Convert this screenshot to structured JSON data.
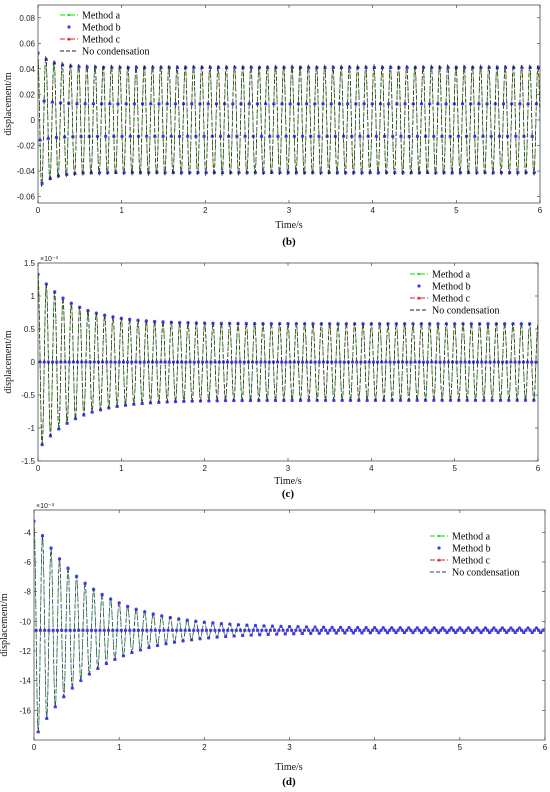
{
  "chart_data": [
    {
      "type": "line",
      "panel": "(b)",
      "caption": "(b)",
      "xlabel": "Time/s",
      "ylabel": "displacement/m",
      "xlim": [
        0,
        6
      ],
      "ylim": [
        -0.065,
        0.09
      ],
      "xticks": [
        0,
        1,
        2,
        3,
        4,
        5,
        6
      ],
      "xtick_labels": [
        "0",
        "1",
        "2",
        "3",
        "4",
        "5",
        "6"
      ],
      "yticks": [
        -0.06,
        -0.04,
        -0.02,
        0,
        0.02,
        0.04,
        0.06,
        0.08
      ],
      "ytick_labels": [
        "-0.06",
        "-0.04",
        "-0.02",
        "0",
        "0.02",
        "0.04",
        "0.06",
        "0.08"
      ],
      "exponent_label": "",
      "legend_position": "top-left",
      "signal": {
        "offset": 0,
        "steady_amplitude": 0.043,
        "initial_amplitude": 0.012,
        "decay": 6.0,
        "frequency": 10.2,
        "phase": 0.3
      },
      "series": [
        {
          "name": "Method a",
          "color": "#00e000",
          "style": "dash-dot",
          "marker": "point"
        },
        {
          "name": "Method b",
          "color": "#3b3bff",
          "style": "none",
          "marker": "circle"
        },
        {
          "name": "Method c",
          "color": "#e02020",
          "style": "dash-dot",
          "marker": "triangle"
        },
        {
          "name": "No condensation",
          "color": "#222222",
          "style": "dashed",
          "marker": "none"
        }
      ]
    },
    {
      "type": "line",
      "panel": "(c)",
      "caption": "(c)",
      "xlabel": "Time/s",
      "ylabel": "displacement/m",
      "xlim": [
        0,
        6
      ],
      "ylim": [
        -1.5,
        1.5
      ],
      "xticks": [
        0,
        1,
        2,
        3,
        4,
        5,
        6
      ],
      "xtick_labels": [
        "0",
        "1",
        "2",
        "3",
        "4",
        "5",
        "6"
      ],
      "yticks": [
        -1.5,
        -1,
        -0.5,
        0,
        0.5,
        1,
        1.5
      ],
      "ytick_labels": [
        "-1.5",
        "-1",
        "-0.5",
        "0",
        "0.5",
        "1",
        "1.5"
      ],
      "exponent_label": "×10⁻³",
      "legend_position": "top-right",
      "signal": {
        "offset": 0,
        "steady_amplitude": 0.58,
        "initial_amplitude": 0.75,
        "decay": 2.2,
        "frequency": 10.0,
        "phase": 0.0
      },
      "series": [
        {
          "name": "Method a",
          "color": "#00e000",
          "style": "dash-dot",
          "marker": "point"
        },
        {
          "name": "Method b",
          "color": "#3b3bff",
          "style": "none",
          "marker": "circle"
        },
        {
          "name": "Method c",
          "color": "#e02020",
          "style": "dash-dot",
          "marker": "triangle"
        },
        {
          "name": "No condensation",
          "color": "#222222",
          "style": "dashed",
          "marker": "none"
        }
      ]
    },
    {
      "type": "line",
      "panel": "(d)",
      "caption": "(d)",
      "xlabel": "Time/s",
      "ylabel": "displacement/m",
      "xlim": [
        0,
        6
      ],
      "ylim": [
        -18,
        -2.5
      ],
      "xticks": [
        0,
        1,
        2,
        3,
        4,
        5,
        6
      ],
      "xtick_labels": [
        "0",
        "1",
        "2",
        "3",
        "4",
        "5",
        "6"
      ],
      "yticks": [
        -16,
        -14,
        -12,
        -10,
        -8,
        -6,
        -4
      ],
      "ytick_labels": [
        "-16",
        "-14",
        "-12",
        "-10",
        "-8",
        "-6",
        "-4"
      ],
      "exponent_label": "×10⁻³",
      "legend_position": "top-right",
      "signal": {
        "offset": -10.6,
        "steady_amplitude": 0.15,
        "initial_amplitude": 7.2,
        "decay": 1.45,
        "frequency": 10.0,
        "phase": 0.0
      },
      "series": [
        {
          "name": "Method a",
          "color": "#00e000",
          "style": "dash-dot",
          "marker": "point"
        },
        {
          "name": "Method b",
          "color": "#3b3bff",
          "style": "none",
          "marker": "circle"
        },
        {
          "name": "Method c",
          "color": "#e02020",
          "style": "dash-dot",
          "marker": "triangle"
        },
        {
          "name": "No condensation",
          "color": "#2b3f80",
          "style": "dashed",
          "marker": "none"
        }
      ]
    }
  ]
}
